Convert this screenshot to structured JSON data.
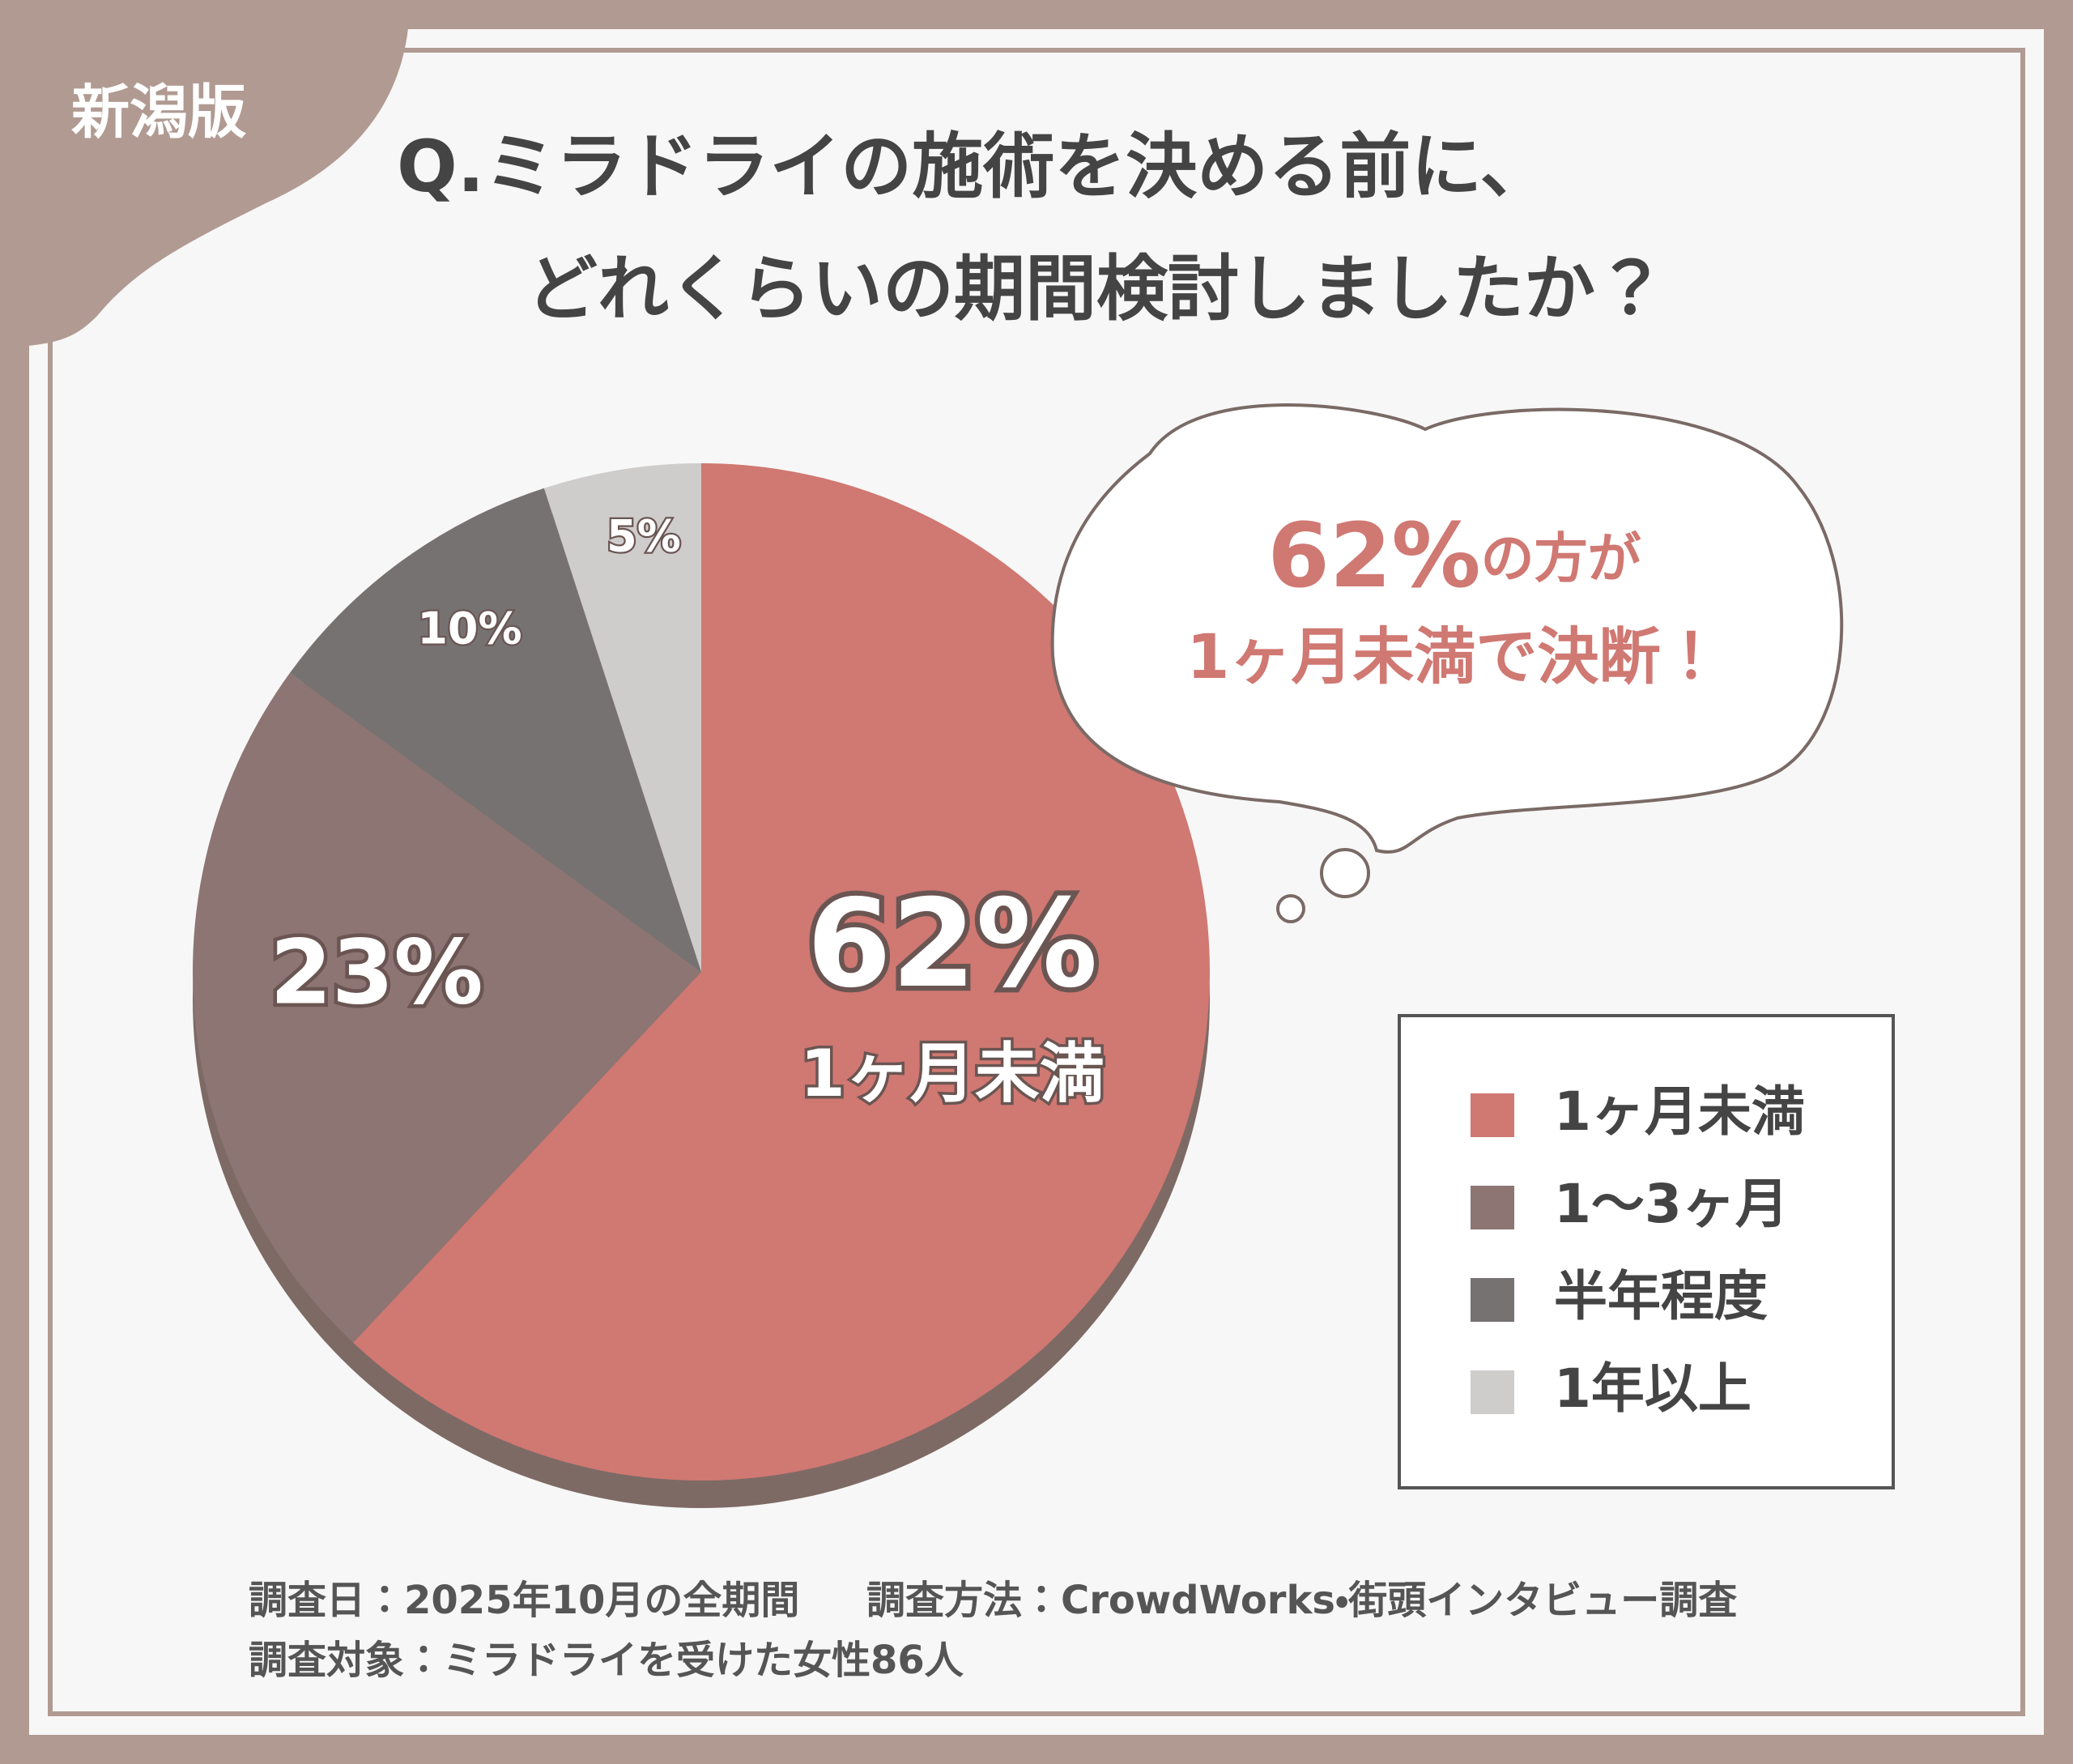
{
  "chart_data": {
    "type": "pie",
    "badge": "新潟版",
    "title": [
      "Q.ミラドライの施術を決める前に、",
      "どれくらいの期間検討しましたか？"
    ],
    "categories": [
      "1ヶ月未満",
      "1〜3ヶ月",
      "半年程度",
      "1年以上"
    ],
    "values": [
      62,
      23,
      10,
      5
    ],
    "value_labels": [
      "62%",
      "23%",
      "10%",
      "5%"
    ],
    "colors": [
      "#d07872",
      "#8c7572",
      "#777272",
      "#cfcccc"
    ],
    "callout": [
      "62%",
      "の方が",
      "1ヶ月未満で決断！"
    ],
    "legend": "bottom-right",
    "notes": [
      "調査日：2025年10月の全期間",
      "調査方法：CrowdWorks・街頭インタビュー調査",
      "調査対象：ミラドライを受けた女性86人"
    ]
  }
}
